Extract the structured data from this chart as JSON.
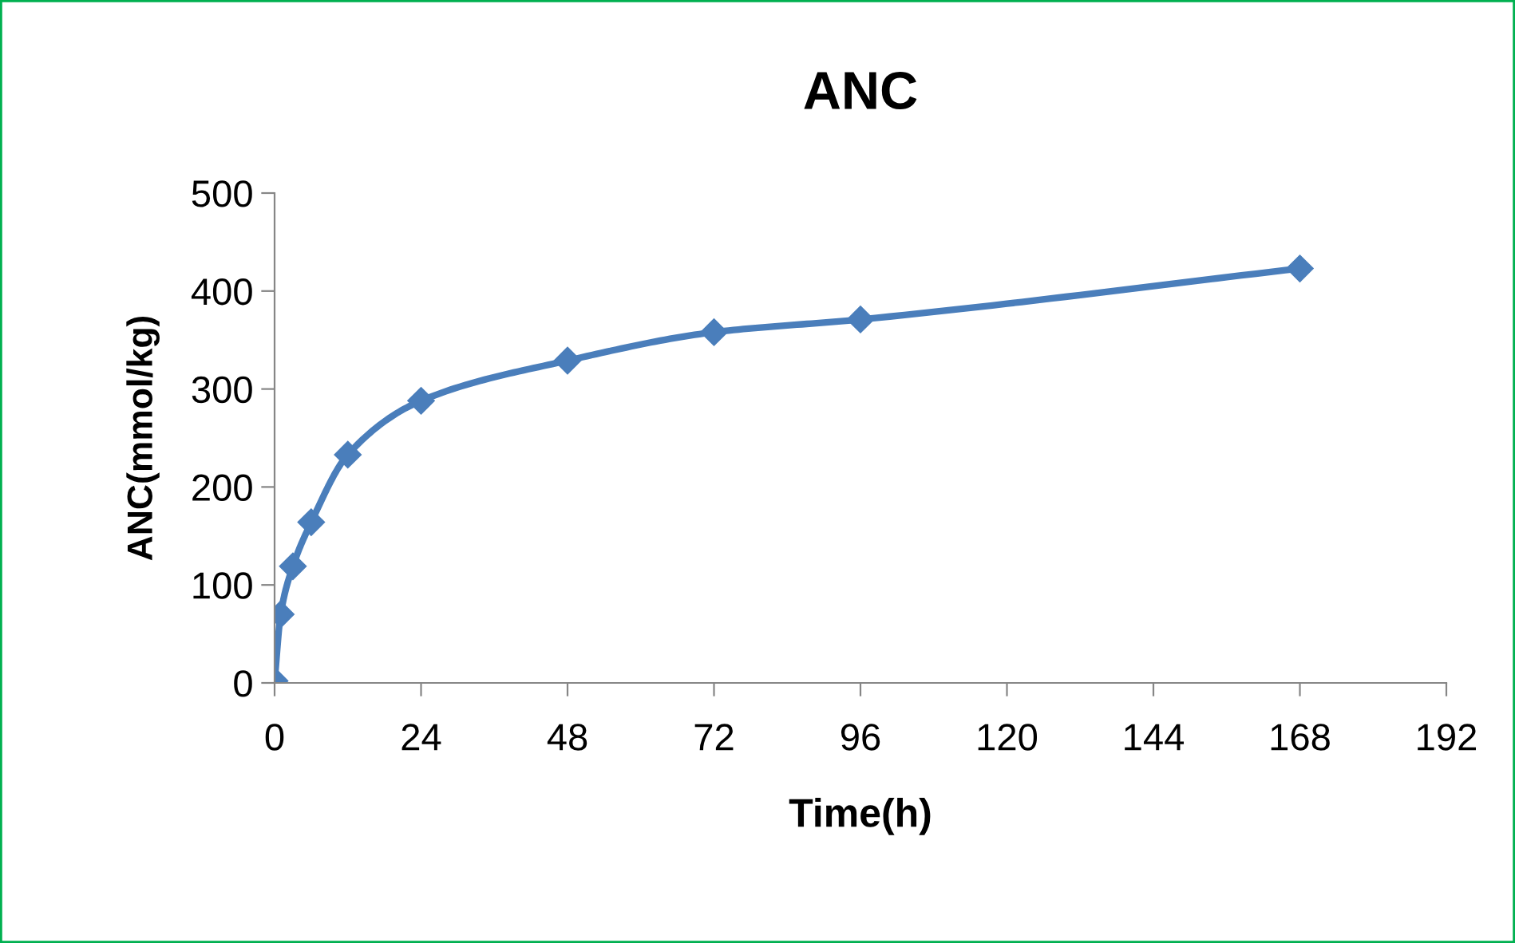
{
  "chart_data": {
    "type": "line",
    "title": "ANC",
    "xlabel": "Time(h)",
    "ylabel": "ANC(mmol/kg)",
    "x": [
      0,
      1,
      3,
      6,
      12,
      24,
      48,
      72,
      96,
      168
    ],
    "series": [
      {
        "color": "#4a7ebb",
        "values": [
          2,
          70,
          119,
          164,
          233,
          288,
          329,
          358,
          371,
          423
        ]
      }
    ],
    "xlim": [
      0,
      192
    ],
    "xticks": [
      0,
      24,
      48,
      72,
      96,
      120,
      144,
      168,
      192
    ],
    "ylim": [
      0,
      500
    ],
    "yticks": [
      0,
      100,
      200,
      300,
      400,
      500
    ],
    "grid": false,
    "legend": false,
    "marker": "diamond",
    "line_style": "solid"
  }
}
